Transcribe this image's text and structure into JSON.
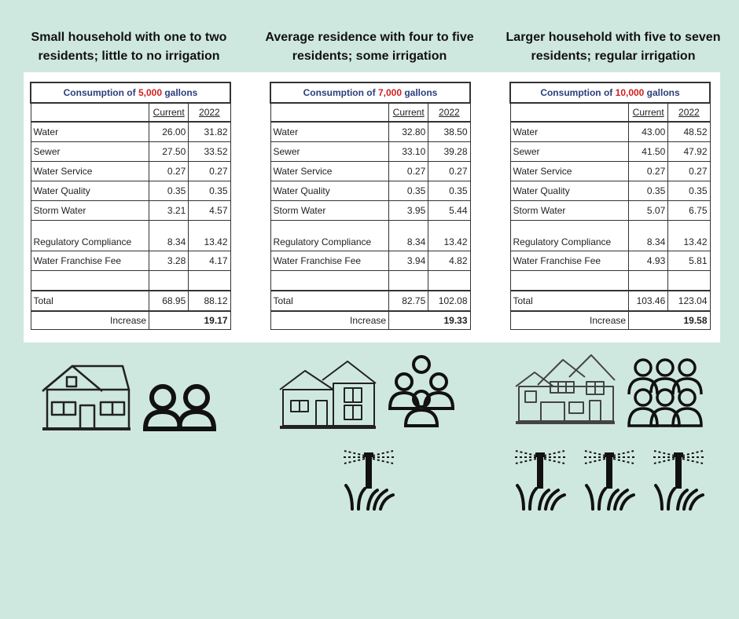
{
  "scenarios": [
    {
      "heading": "Small household with one to two residents; little to no irrigation",
      "title_prefix": "Consumption of ",
      "title_gallons": "5,000",
      "title_suffix": " gallons",
      "col_current": "Current",
      "col_year": "2022",
      "rows": [
        {
          "label": "Water",
          "current": "26.00",
          "y2022": "31.82"
        },
        {
          "label": "Sewer",
          "current": "27.50",
          "y2022": "33.52"
        },
        {
          "label": "Water Service",
          "current": "0.27",
          "y2022": "0.27"
        },
        {
          "label": "Water Quality",
          "current": "0.35",
          "y2022": "0.35"
        },
        {
          "label": "Storm Water",
          "current": "3.21",
          "y2022": "4.57"
        },
        {
          "label": "Regulatory Compliance",
          "current": "8.34",
          "y2022": "13.42"
        },
        {
          "label": "Water Franchise Fee",
          "current": "3.28",
          "y2022": "4.17"
        }
      ],
      "total_label": "Total",
      "total_current": "68.95",
      "total_2022": "88.12",
      "increase_label": "Increase",
      "increase_value": "19.17"
    },
    {
      "heading": "Average residence with four to five residents; some irrigation",
      "title_prefix": "Consumption of ",
      "title_gallons": "7,000",
      "title_suffix": " gallons",
      "col_current": "Current",
      "col_year": "2022",
      "rows": [
        {
          "label": "Water",
          "current": "32.80",
          "y2022": "38.50"
        },
        {
          "label": "Sewer",
          "current": "33.10",
          "y2022": "39.28"
        },
        {
          "label": "Water Service",
          "current": "0.27",
          "y2022": "0.27"
        },
        {
          "label": "Water Quality",
          "current": "0.35",
          "y2022": "0.35"
        },
        {
          "label": "Storm Water",
          "current": "3.95",
          "y2022": "5.44"
        },
        {
          "label": "Regulatory Compliance",
          "current": "8.34",
          "y2022": "13.42"
        },
        {
          "label": "Water Franchise Fee",
          "current": "3.94",
          "y2022": "4.82"
        }
      ],
      "total_label": "Total",
      "total_current": "82.75",
      "total_2022": "102.08",
      "increase_label": "Increase",
      "increase_value": "19.33"
    },
    {
      "heading": "Larger household with five to seven residents; regular irrigation",
      "title_prefix": "Consumption of ",
      "title_gallons": "10,000",
      "title_suffix": " gallons",
      "col_current": "Current",
      "col_year": "2022",
      "rows": [
        {
          "label": "Water",
          "current": "43.00",
          "y2022": "48.52"
        },
        {
          "label": "Sewer",
          "current": "41.50",
          "y2022": "47.92"
        },
        {
          "label": "Water Service",
          "current": "0.27",
          "y2022": "0.27"
        },
        {
          "label": "Water Quality",
          "current": "0.35",
          "y2022": "0.35"
        },
        {
          "label": "Storm Water",
          "current": "5.07",
          "y2022": "6.75"
        },
        {
          "label": "Regulatory Compliance",
          "current": "8.34",
          "y2022": "13.42"
        },
        {
          "label": "Water Franchise Fee",
          "current": "4.93",
          "y2022": "5.81"
        }
      ],
      "total_label": "Total",
      "total_current": "103.46",
      "total_2022": "123.04",
      "increase_label": "Increase",
      "increase_value": "19.58"
    }
  ],
  "icons": {
    "small_house": "house-icon",
    "two_people": "two-people-icon",
    "medium_house": "duplex-house-icon",
    "group_people": "group-of-people-icon",
    "large_house": "large-house-icon",
    "crowd_people": "crowd-of-people-icon",
    "sprinkler": "sprinkler-icon"
  },
  "colors": {
    "background": "#cfe8df",
    "title_blue": "#2b3f7a",
    "gallons_red": "#d21f1f"
  }
}
